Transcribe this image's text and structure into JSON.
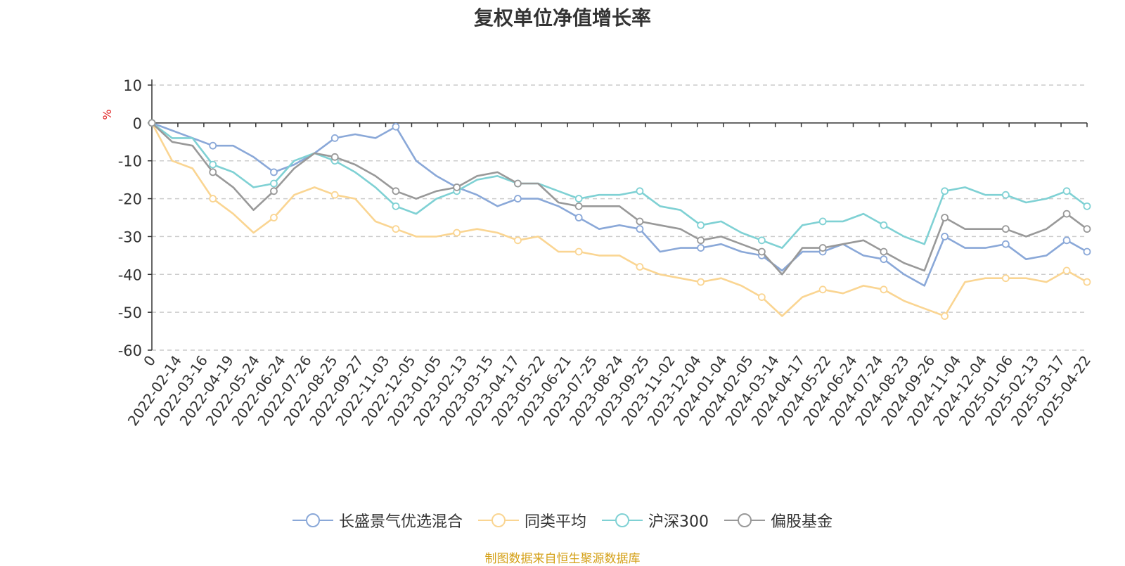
{
  "chart_data": {
    "type": "line",
    "title": "复权单位净值增长率",
    "ylabel": "%",
    "ylim": [
      -60,
      10
    ],
    "yticks": [
      10,
      0,
      -10,
      -20,
      -30,
      -40,
      -50,
      -60
    ],
    "x_tick_labels": [
      "0",
      "2022-02-14",
      "2022-03-16",
      "2022-04-19",
      "2022-05-24",
      "2022-06-24",
      "2022-07-26",
      "2022-08-25",
      "2022-09-27",
      "2022-11-03",
      "2022-12-05",
      "2023-01-05",
      "2023-02-13",
      "2023-03-15",
      "2023-04-17",
      "2023-05-22",
      "2023-06-21",
      "2023-07-25",
      "2023-08-24",
      "2023-09-25",
      "2023-11-02",
      "2023-12-04",
      "2024-01-04",
      "2024-02-05",
      "2024-03-14",
      "2024-04-17",
      "2024-05-22",
      "2024-06-24",
      "2024-07-24",
      "2024-08-23",
      "2024-09-26",
      "2024-11-04",
      "2024-12-04",
      "2025-01-06",
      "2025-02-13",
      "2025-03-17",
      "2025-04-22"
    ],
    "grid": true,
    "legend_position": "bottom",
    "source_note": "制图数据来自恒生聚源数据库",
    "series": [
      {
        "name": "长盛景气优选混合",
        "color": "#8aa8d8",
        "values": [
          0,
          -2,
          -4,
          -6,
          -6,
          -9,
          -13,
          -11,
          -8,
          -4,
          -3,
          -4,
          -1,
          -10,
          -14,
          -17,
          -19,
          -22,
          -20,
          -20,
          -22,
          -25,
          -28,
          -27,
          -28,
          -34,
          -33,
          -33,
          -32,
          -34,
          -35,
          -39,
          -34,
          -34,
          -32,
          -35,
          -36,
          -40,
          -43,
          -30,
          -33,
          -33,
          -32,
          -36,
          -35,
          -31,
          -34
        ]
      },
      {
        "name": "同类平均",
        "color": "#fad592",
        "values": [
          0,
          -10,
          -12,
          -20,
          -24,
          -29,
          -25,
          -19,
          -17,
          -19,
          -20,
          -26,
          -28,
          -30,
          -30,
          -29,
          -28,
          -29,
          -31,
          -30,
          -34,
          -34,
          -35,
          -35,
          -38,
          -40,
          -41,
          -42,
          -41,
          -43,
          -46,
          -51,
          -46,
          -44,
          -45,
          -43,
          -44,
          -47,
          -49,
          -51,
          -42,
          -41,
          -41,
          -41,
          -42,
          -39,
          -42
        ]
      },
      {
        "name": "沪深300",
        "color": "#7fd1d4",
        "values": [
          0,
          -4,
          -4,
          -11,
          -13,
          -17,
          -16,
          -10,
          -8,
          -10,
          -13,
          -17,
          -22,
          -24,
          -20,
          -18,
          -15,
          -14,
          -16,
          -16,
          -18,
          -20,
          -19,
          -19,
          -18,
          -22,
          -23,
          -27,
          -26,
          -29,
          -31,
          -33,
          -27,
          -26,
          -26,
          -24,
          -27,
          -30,
          -32,
          -18,
          -17,
          -19,
          -19,
          -21,
          -20,
          -18,
          -22
        ]
      },
      {
        "name": "偏股基金",
        "color": "#999999",
        "values": [
          0,
          -5,
          -6,
          -13,
          -17,
          -23,
          -18,
          -12,
          -8,
          -9,
          -11,
          -14,
          -18,
          -20,
          -18,
          -17,
          -14,
          -13,
          -16,
          -16,
          -21,
          -22,
          -22,
          -22,
          -26,
          -27,
          -28,
          -31,
          -30,
          -32,
          -34,
          -40,
          -33,
          -33,
          -32,
          -31,
          -34,
          -37,
          -39,
          -25,
          -28,
          -28,
          -28,
          -30,
          -28,
          -24,
          -28
        ]
      }
    ]
  }
}
